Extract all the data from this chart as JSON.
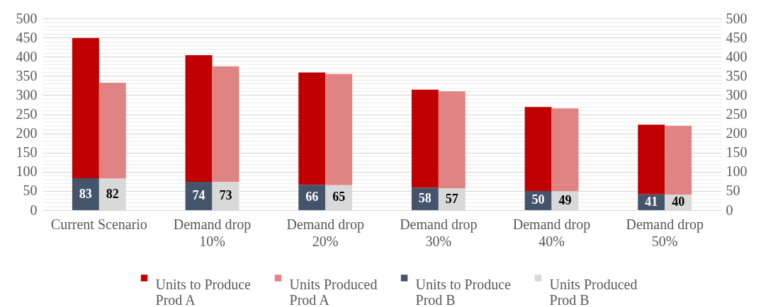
{
  "chart_data": {
    "type": "bar",
    "categories": [
      "Current Scenario",
      "Demand drop 10%",
      "Demand drop 20%",
      "Demand drop 30%",
      "Demand drop 40%",
      "Demand drop 50%"
    ],
    "series": [
      {
        "name": "Units to Produce Prod A",
        "color": "#c00000",
        "values": [
          366,
          330,
          293,
          256,
          219,
          182
        ],
        "base": [
          83,
          74,
          66,
          58,
          50,
          41
        ]
      },
      {
        "name": "Units Produced Prod A",
        "color": "#df8482",
        "values": [
          250,
          302,
          290,
          253,
          216,
          180
        ],
        "base": [
          82,
          73,
          65,
          57,
          49,
          40
        ]
      },
      {
        "name": "Units to Produce Prod B",
        "color": "#44546a",
        "values": [
          83,
          74,
          66,
          58,
          50,
          41
        ],
        "value_labels": [
          "83",
          "74",
          "66",
          "58",
          "50",
          "41"
        ]
      },
      {
        "name": "Units Produced Prod B",
        "color": "#d9d9d9",
        "values": [
          82,
          73,
          65,
          57,
          49,
          40
        ],
        "value_labels": [
          "82",
          "73",
          "65",
          "57",
          "49",
          "40"
        ]
      }
    ],
    "ylim": [
      0,
      500
    ],
    "yticks": [
      0,
      {
        "value": 10,
        "label": null
      },
      {
        "value": 20,
        "label": null
      },
      {
        "value": 30,
        "label": null
      },
      {
        "value": 40,
        "label": null
      },
      50,
      {
        "value": 60,
        "label": null
      },
      {
        "value": 70,
        "label": null
      },
      {
        "value": 80,
        "label": null
      },
      {
        "value": 90,
        "label": null
      },
      100,
      {
        "value": 110,
        "label": null
      },
      {
        "value": 120,
        "label": null
      },
      {
        "value": 130,
        "label": null
      },
      {
        "value": 140,
        "label": null
      },
      150,
      {
        "value": 160,
        "label": null
      },
      {
        "value": 170,
        "label": null
      },
      {
        "value": 180,
        "label": null
      },
      {
        "value": 190,
        "label": null
      },
      200,
      {
        "value": 210,
        "label": null
      },
      {
        "value": 220,
        "label": null
      },
      {
        "value": 230,
        "label": null
      },
      {
        "value": 240,
        "label": null
      },
      250,
      {
        "value": 260,
        "label": null
      },
      {
        "value": 270,
        "label": null
      },
      {
        "value": 280,
        "label": null
      },
      {
        "value": 290,
        "label": null
      },
      300,
      {
        "value": 310,
        "label": null
      },
      {
        "value": 320,
        "label": null
      },
      {
        "value": 330,
        "label": null
      },
      {
        "value": 340,
        "label": null
      },
      350,
      {
        "value": 360,
        "label": null
      },
      {
        "value": 370,
        "label": null
      },
      {
        "value": 380,
        "label": null
      },
      {
        "value": 390,
        "label": null
      },
      400,
      {
        "value": 410,
        "label": null
      },
      {
        "value": 420,
        "label": null
      },
      {
        "value": 430,
        "label": null
      },
      {
        "value": 440,
        "label": null
      },
      450,
      {
        "value": 460,
        "label": null
      },
      {
        "value": 470,
        "label": null
      },
      {
        "value": 480,
        "label": null
      },
      {
        "value": 490,
        "label": null
      },
      500
    ],
    "y2lim": [
      0,
      500
    ],
    "y2ticks": [
      0,
      50,
      100,
      150,
      200,
      250,
      300,
      350,
      400,
      450,
      500
    ],
    "grid": "y",
    "legend": "bottom"
  }
}
